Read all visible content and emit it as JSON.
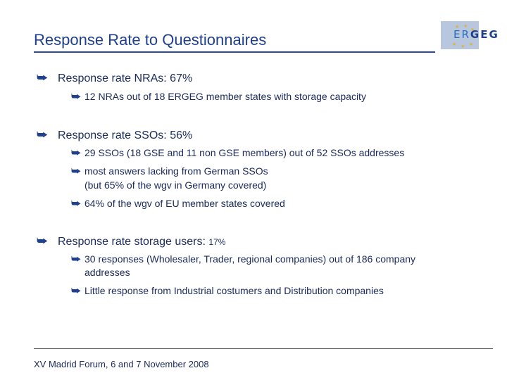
{
  "slide": {
    "title": "Response Rate to Questionnaires",
    "footer": "XV Madrid Forum, 6 and 7 November 2008"
  },
  "logo": {
    "letters_light": "ER",
    "letters_dark": "GEG",
    "icon": "ergeg-logo-with-eu-stars"
  },
  "bullet_icon": "curved-arrow-icon",
  "arrow_glyph": "⮩",
  "sections": [
    {
      "text": "Response rate NRAs: 67%",
      "items": [
        {
          "lines": [
            "12 NRAs out of 18 ERGEG member states with storage capacity"
          ]
        }
      ]
    },
    {
      "text": "Response rate SSOs: 56%",
      "items": [
        {
          "lines": [
            "29 SSOs (18 GSE and 11 non GSE members) out of 52 SSOs addresses"
          ]
        },
        {
          "lines": [
            "most answers lacking from German SSOs",
            "(but 65% of the wgv in Germany covered)"
          ]
        },
        {
          "lines": [
            "64% of the wgv of EU member states covered"
          ]
        }
      ]
    },
    {
      "text": "Response rate storage users:",
      "text_suffix": "17%",
      "items": [
        {
          "lines": [
            "30 responses (Wholesaler, Trader, regional companies) out of 186 company",
            "addresses"
          ]
        },
        {
          "lines": [
            "Little response from Industrial costumers and Distribution companies"
          ]
        }
      ]
    }
  ],
  "colors": {
    "title": "#1f3f8f",
    "text": "#1a2a5c",
    "logo_box": "#b8c6de",
    "logo_stars": "#d6b640"
  }
}
